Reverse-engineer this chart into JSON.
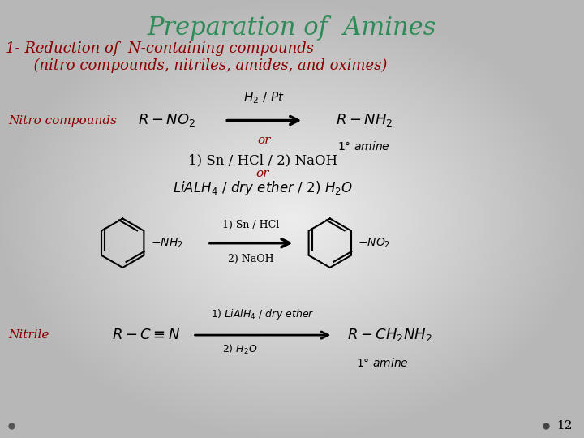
{
  "title": "Preparation of  Amines",
  "title_color": "#2e8b57",
  "title_fontsize": 22,
  "subtitle_line1": "1- Reduction of  N-containing compounds",
  "subtitle_line2": "      (nitro compounds, nitriles, amides, and oximes)",
  "subtitle_color": "#8b0000",
  "subtitle_fontsize": 13,
  "label_nitro": "Nitro compounds",
  "label_nitrile": "Nitrile",
  "label_color": "#8b0000",
  "label_fontsize": 11,
  "bg_color_center": "#e8e8e8",
  "bg_color_edge": "#b0b0b0",
  "text_color": "#1a1a1a",
  "page_number": "12"
}
